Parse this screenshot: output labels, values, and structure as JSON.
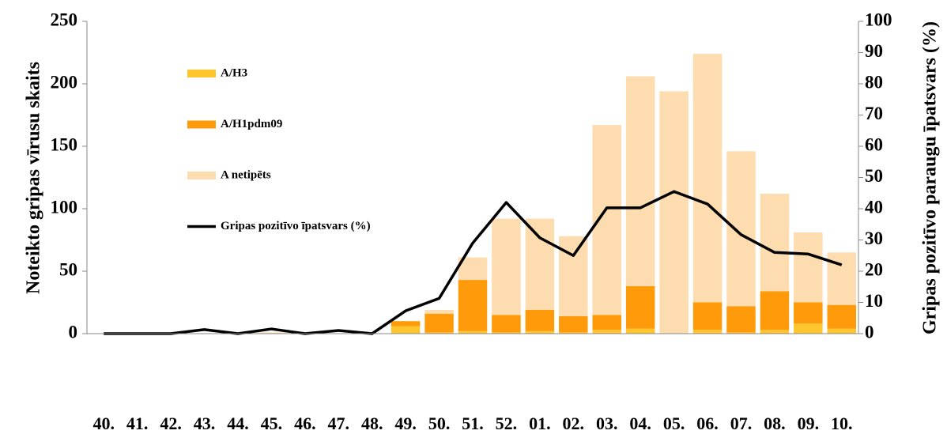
{
  "chart_data": {
    "type": "bar",
    "categories": [
      "40.",
      "41.",
      "42.",
      "43.",
      "44.",
      "45.",
      "46.",
      "47.",
      "48.",
      "49.",
      "50.",
      "51.",
      "52.",
      "01.",
      "02.",
      "03.",
      "04.",
      "05.",
      "06.",
      "07.",
      "08.",
      "09.",
      "10."
    ],
    "stacked": true,
    "series": [
      {
        "name": "A/H3",
        "color": "#ffc52e",
        "values": [
          0,
          0,
          0,
          0,
          0,
          0,
          0,
          0,
          0,
          6,
          1,
          2,
          1,
          2,
          1,
          3,
          4,
          0,
          3,
          1,
          3,
          8,
          4
        ]
      },
      {
        "name": "A/H1pdm09",
        "color": "#ff9a0a",
        "values": [
          0,
          0,
          0,
          0,
          0,
          0,
          0,
          0,
          0,
          4,
          15,
          41,
          14,
          17,
          13,
          12,
          34,
          0,
          22,
          21,
          31,
          17,
          19
        ]
      },
      {
        "name": "A netipēts",
        "color": "#fddcb0",
        "values": [
          0,
          0,
          0,
          0,
          0,
          1,
          0,
          0,
          0,
          0,
          3,
          18,
          77,
          73,
          64,
          152,
          168,
          194,
          199,
          124,
          78,
          56,
          42
        ]
      },
      {
        "name": "Gripas pozitīvo īpatsvars (%)",
        "type": "line",
        "axis": "y2",
        "color": "#000000",
        "values": [
          0,
          0,
          0,
          1.3,
          0,
          1.5,
          0,
          1,
          0,
          7.3,
          11.3,
          29,
          42,
          30.7,
          25,
          40.3,
          40.3,
          45.5,
          41.5,
          31.7,
          26,
          25.5,
          22
        ]
      }
    ],
    "ylim": [
      0,
      250
    ],
    "yticks": [
      0,
      50,
      100,
      150,
      200,
      250
    ],
    "y2lim": [
      0,
      100
    ],
    "y2ticks": [
      0,
      10,
      20,
      30,
      40,
      50,
      60,
      70,
      80,
      90,
      100
    ],
    "ylabel": "Noteikto gripas vīrusu skaits",
    "y2label": "Gripas pozitīvo paraugu īpatsvars (%)",
    "legend": "upper left"
  }
}
